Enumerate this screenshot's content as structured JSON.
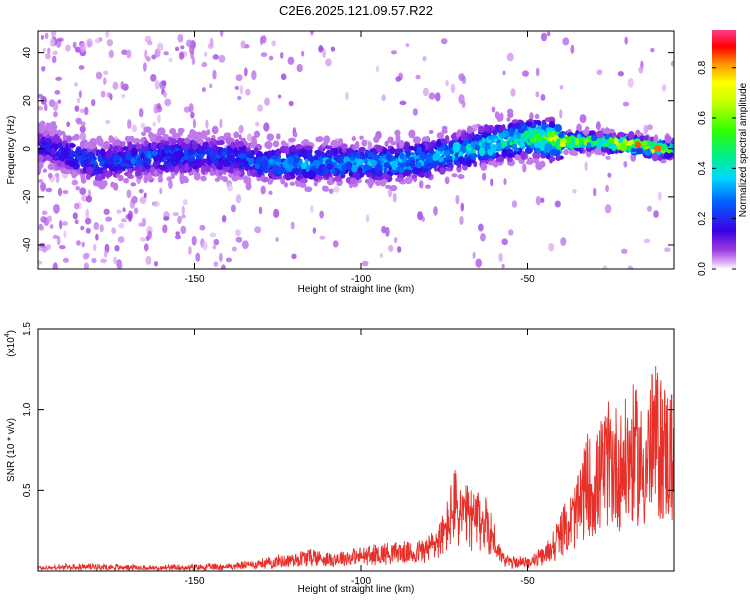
{
  "title": "C2E6.2025.121.09.57.R22",
  "chart_data": [
    {
      "type": "heatmap",
      "xlabel": "Height of straight line (km)",
      "ylabel": "Frequency (Hz)",
      "xlim": [
        -197,
        -6
      ],
      "ylim": [
        -50,
        49
      ],
      "xticks": [
        -150,
        -100,
        -50
      ],
      "yticks": [
        -40,
        -20,
        0,
        20,
        40
      ],
      "colorbar": {
        "label": "Normalized spectral amplitude",
        "range": [
          0,
          0.95
        ],
        "ticks": [
          0.0,
          0.2,
          0.4,
          0.6,
          0.8
        ]
      },
      "ridge": {
        "x": [
          -197,
          -180,
          -160,
          -140,
          -130,
          -120,
          -110,
          -100,
          -90,
          -80,
          -70,
          -60,
          -50,
          -40,
          -30,
          -20,
          -10,
          -6
        ],
        "center_freq": [
          2,
          -6,
          -3,
          -3,
          -6,
          -6,
          -6,
          -6,
          -6,
          -4,
          -1,
          2,
          5,
          3,
          3,
          2,
          0,
          0
        ],
        "peak_amplitude": [
          0.2,
          0.3,
          0.3,
          0.28,
          0.3,
          0.38,
          0.38,
          0.38,
          0.4,
          0.42,
          0.45,
          0.5,
          0.55,
          0.85,
          0.6,
          0.9,
          0.85,
          0.6
        ]
      }
    },
    {
      "type": "line",
      "xlabel": "Height of straight line (km)",
      "ylabel": "SNR (10 * v/v)",
      "y_multiplier": "(x10",
      "y_multiplier_exp": "4",
      "xlim": [
        -197,
        -6
      ],
      "ylim": [
        0,
        1.5
      ],
      "xticks": [
        -150,
        -100,
        -50
      ],
      "yticks": [
        0.5,
        1.0,
        1.5
      ],
      "ytick_labels": [
        "0.5",
        "1.0",
        "1.5"
      ],
      "color": "#e8302a",
      "series": [
        {
          "x": [
            -197,
            -180,
            -160,
            -140,
            -130,
            -120,
            -115,
            -110,
            -100,
            -90,
            -85,
            -80,
            -75,
            -72,
            -70,
            -66,
            -62,
            -58,
            -55,
            -50,
            -45,
            -40,
            -35,
            -32,
            -30,
            -28,
            -25,
            -22,
            -20,
            -18,
            -15,
            -12,
            -10,
            -8,
            -6
          ],
          "y": [
            0.02,
            0.03,
            0.02,
            0.03,
            0.05,
            0.08,
            0.1,
            0.08,
            0.1,
            0.13,
            0.12,
            0.15,
            0.25,
            0.45,
            0.38,
            0.35,
            0.32,
            0.1,
            0.06,
            0.06,
            0.1,
            0.25,
            0.4,
            0.6,
            0.55,
            0.65,
            0.75,
            0.7,
            0.75,
            0.8,
            0.7,
            0.9,
            0.85,
            0.8,
            0.8
          ]
        }
      ]
    }
  ]
}
